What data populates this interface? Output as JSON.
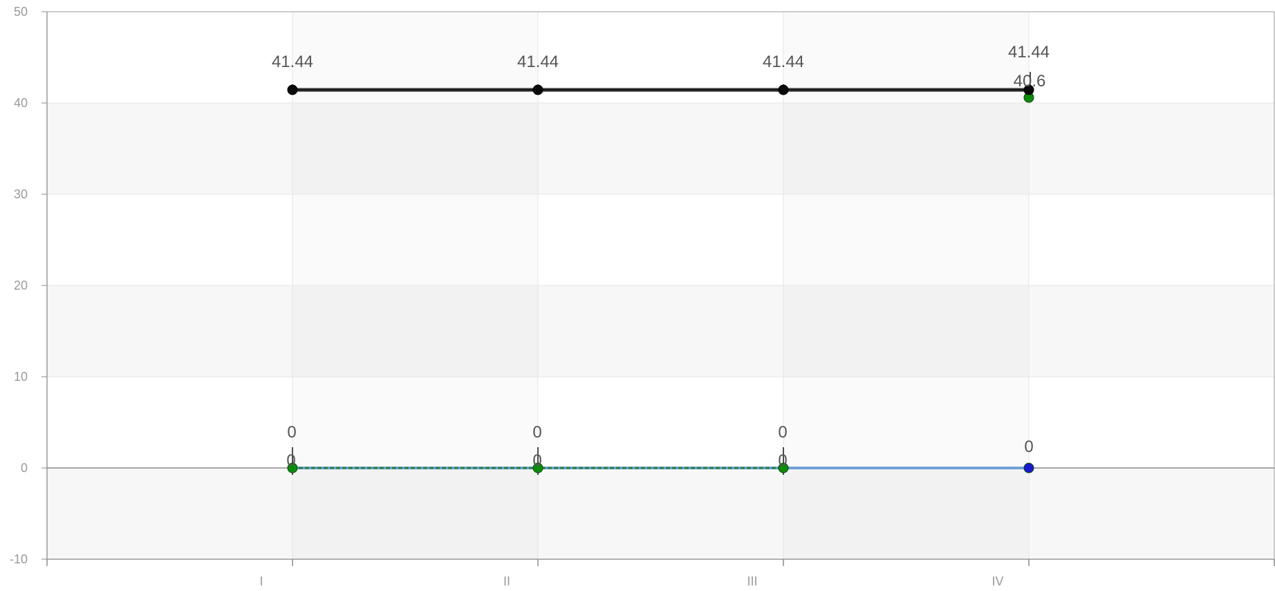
{
  "chart_data": {
    "type": "line",
    "categories": [
      "I",
      "II",
      "III",
      "IV"
    ],
    "ylim": [
      -10,
      50
    ],
    "yticks": [
      -10,
      0,
      10,
      20,
      30,
      40,
      50
    ],
    "grid": true,
    "legend": "none",
    "title": "",
    "xlabel": "",
    "ylabel": "",
    "series": [
      {
        "color": "#111111",
        "values": [
          41.44,
          41.44,
          41.44,
          41.44
        ],
        "labels": [
          "41.44",
          "41.44",
          "41.44",
          "41.44"
        ]
      },
      {
        "color": "#1f7a1f",
        "values": [
          0,
          0,
          0,
          40.6
        ],
        "labels": [
          "0",
          "0",
          "0",
          "40.6"
        ]
      },
      {
        "color": "#1a1acc",
        "values": [
          0,
          0,
          0,
          0
        ],
        "labels": [
          "0",
          "0",
          "0",
          "0"
        ]
      }
    ]
  }
}
